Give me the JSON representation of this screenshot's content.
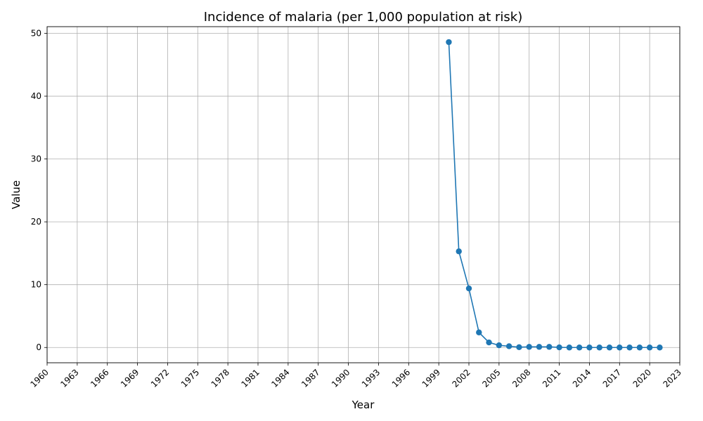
{
  "chart_data": {
    "type": "line",
    "title": "Incidence of malaria (per 1,000 population at risk)",
    "xlabel": "Year",
    "ylabel": "Value",
    "xlim": [
      1960,
      2023
    ],
    "ylim": [
      -2.43,
      51.06
    ],
    "x_ticks": [
      1960,
      1963,
      1966,
      1969,
      1972,
      1975,
      1978,
      1981,
      1984,
      1987,
      1990,
      1993,
      1996,
      1999,
      2002,
      2005,
      2008,
      2011,
      2014,
      2017,
      2020,
      2023
    ],
    "y_ticks": [
      0,
      10,
      20,
      30,
      40,
      50
    ],
    "grid": true,
    "legend": "none",
    "series": [
      {
        "color": "#1f77b4",
        "marker": "circle",
        "x": [
          2000,
          2001,
          2002,
          2003,
          2004,
          2005,
          2006,
          2007,
          2008,
          2009,
          2010,
          2011,
          2012,
          2013,
          2014,
          2015,
          2016,
          2017,
          2018,
          2019,
          2020,
          2021
        ],
        "values": [
          48.6,
          15.3,
          9.4,
          2.4,
          0.8,
          0.35,
          0.2,
          0.05,
          0.1,
          0.1,
          0.1,
          0.02,
          0.0,
          0.0,
          0.0,
          0.0,
          0.0,
          0.0,
          0.0,
          0.0,
          0.0,
          0.0
        ]
      }
    ]
  }
}
